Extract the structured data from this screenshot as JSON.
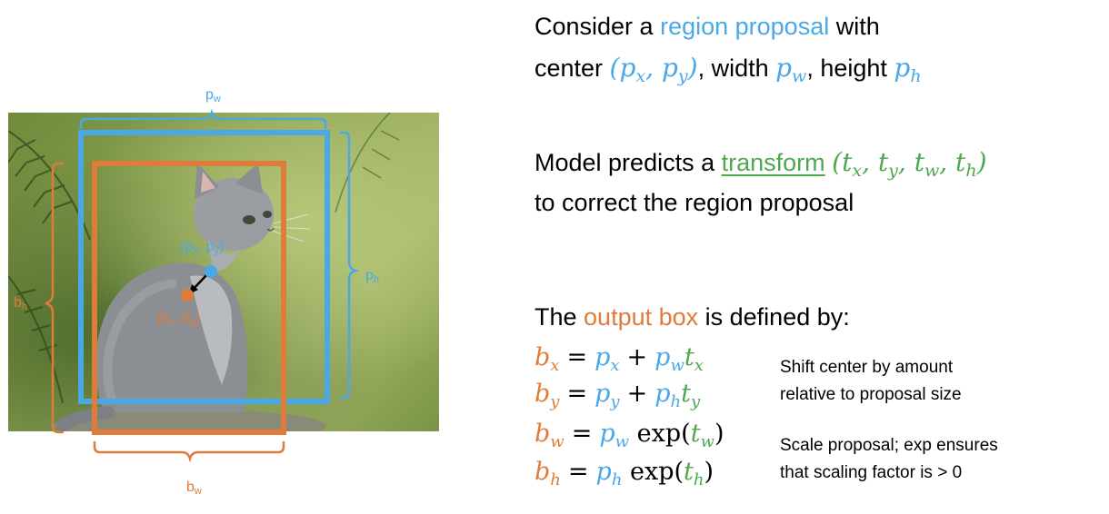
{
  "colors": {
    "proposal": "#4aa8e6",
    "output": "#e07b39",
    "transform": "#4ea84e"
  },
  "figure": {
    "labels": {
      "pw": {
        "base": "p",
        "sub": "w"
      },
      "ph": {
        "base": "p",
        "sub": "h"
      },
      "bw": {
        "base": "b",
        "sub": "w"
      },
      "bh": {
        "base": "b",
        "sub": "h"
      },
      "p_center": {
        "open": "(p",
        "sub1": "x",
        "mid": ", p",
        "sub2": "y",
        "close": ")"
      },
      "b_center": {
        "open": "(b",
        "sub1": "x",
        "mid": ", b",
        "sub2": "y",
        "close": ")"
      }
    }
  },
  "text": {
    "line1": {
      "pre": "Consider a ",
      "highlight": "region proposal",
      "post": " with"
    },
    "line2": {
      "pre": "center ",
      "w_text": ", width ",
      "h_text": ", height "
    },
    "line3": {
      "pre": "Model predicts a ",
      "highlight": "transform",
      "post": " "
    },
    "line4": "to correct the region proposal",
    "line5": {
      "pre": "The ",
      "highlight": "output box",
      "post": " is defined by:"
    },
    "notes": {
      "shift_1": "Shift center by amount",
      "shift_2": "relative to proposal size",
      "scale_1": "Scale proposal; exp ensures",
      "scale_2": "that scaling factor is > 0"
    },
    "math": {
      "p": "p",
      "b": "b",
      "t": "t",
      "x": "x",
      "y": "y",
      "w": "w",
      "h": "h",
      "eq": "=",
      "plus": "+",
      "exp": "exp",
      "lp": "(",
      "rp": ")",
      "comma": ","
    }
  }
}
